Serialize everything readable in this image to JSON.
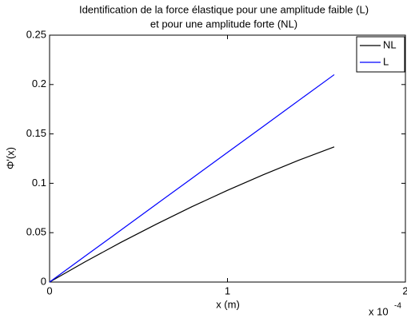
{
  "chart_data": {
    "type": "line",
    "title": [
      "Identification de la force élastique pour une amplitude faible (L)",
      "et pour une amplitude forte (NL)"
    ],
    "x_label": "x (m)",
    "y_label": "Φ'(x)",
    "x_scale_label": "x 10",
    "x_scale_exponent": "-4",
    "x": [
      0,
      0.2,
      0.4,
      0.6,
      0.8,
      1.0,
      1.2,
      1.4,
      1.6
    ],
    "series": [
      {
        "name": "NL",
        "color": "#000000",
        "values": [
          0,
          0.0205,
          0.0401,
          0.0586,
          0.0763,
          0.0929,
          0.1086,
          0.1233,
          0.1369
        ]
      },
      {
        "name": "L",
        "color": "#0000ff",
        "values": [
          0,
          0.0263,
          0.0525,
          0.0788,
          0.105,
          0.1313,
          0.1575,
          0.1838,
          0.21
        ]
      }
    ],
    "xlim": [
      0,
      2
    ],
    "xticks": [
      0,
      1,
      2
    ],
    "ylim": [
      0,
      0.25
    ],
    "yticks": [
      0,
      0.05,
      0.1,
      0.15,
      0.2,
      0.25
    ],
    "legend": "top-right"
  }
}
